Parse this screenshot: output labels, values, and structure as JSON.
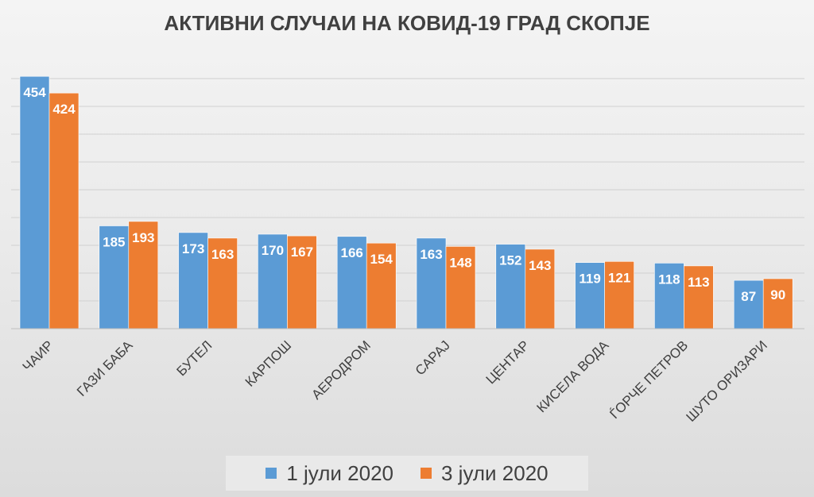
{
  "chart_data": {
    "type": "bar",
    "title": "АКТИВНИ СЛУЧАИ НА КОВИД-19 ГРАД СКОПЈЕ",
    "categories": [
      "ЧАИР",
      "ГАЗИ БАБА",
      "БУТЕЛ",
      "КАРПОШ",
      "АЕРОДРОМ",
      "САРАЈ",
      "ЦЕНТАР",
      "КИСЕЛА ВОДА",
      "ЃОРЧЕ ПЕТРОВ",
      "ШУТО ОРИЗАРИ"
    ],
    "series": [
      {
        "name": "1 јули 2020",
        "color": "#5b9bd5",
        "values": [
          454,
          185,
          173,
          170,
          166,
          163,
          152,
          119,
          118,
          87
        ]
      },
      {
        "name": "3 јули 2020",
        "color": "#ed7d31",
        "values": [
          424,
          193,
          163,
          167,
          154,
          148,
          143,
          121,
          113,
          90
        ]
      }
    ],
    "ylim": [
      0,
      450
    ],
    "grid": true,
    "data_labels": true,
    "legend_position": "bottom"
  }
}
